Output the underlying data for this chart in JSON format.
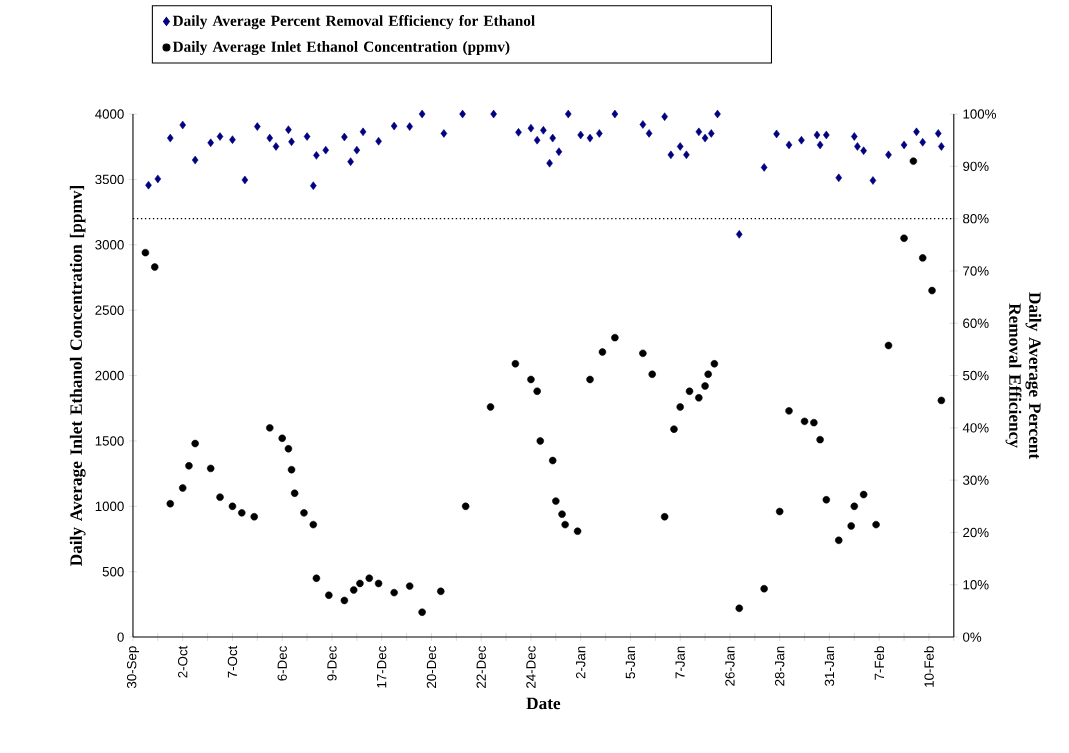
{
  "chart_data": {
    "type": "scatter",
    "xlabel": "Date",
    "ylabel": "Daily Average Inlet Ethanol Concentration [ppmv]",
    "y2label": "Daily Average Percent Removal Efficiency",
    "categories": [
      "30-Sep",
      null,
      null,
      null,
      null,
      null,
      null,
      null,
      null,
      null,
      null,
      null,
      null,
      null,
      null,
      null,
      "2-Oct",
      null,
      null,
      null,
      null,
      null,
      null,
      null,
      null,
      null,
      null,
      null,
      null,
      null,
      null,
      null,
      "7-Oct",
      null,
      null,
      null,
      null,
      null,
      null,
      null,
      null,
      null,
      null,
      null,
      null,
      null,
      null,
      null,
      "6-Dec",
      null,
      null,
      null,
      null,
      null,
      null,
      null,
      null,
      null,
      null,
      null,
      null,
      null,
      null,
      null,
      "9-Dec",
      null,
      null,
      null,
      null,
      null,
      null,
      null,
      null,
      null,
      null,
      null,
      null,
      null,
      null,
      null,
      "17-Dec",
      null,
      null,
      null,
      null,
      null,
      null,
      null,
      null,
      null,
      null,
      null,
      null,
      null,
      null,
      null,
      "20-Dec",
      null,
      null,
      null,
      null,
      null,
      null,
      null,
      null,
      null,
      null,
      null,
      null,
      null,
      null,
      null,
      "22-Dec",
      null,
      null,
      null,
      null,
      null,
      null,
      null,
      null,
      null,
      null,
      null,
      null,
      null,
      null,
      null,
      "24-Dec",
      null,
      null,
      null,
      null,
      null,
      null,
      null,
      null,
      null,
      null,
      null,
      null,
      null,
      null,
      null,
      "2-Jan",
      null,
      null,
      null,
      null,
      null,
      null,
      null,
      null,
      null,
      null,
      null,
      null,
      null,
      null,
      null,
      "5-Jan",
      null,
      null,
      null,
      null,
      null,
      null,
      null,
      null,
      null,
      null,
      null,
      null,
      null,
      null,
      null,
      "7-Jan",
      null,
      null,
      null,
      null,
      null,
      null,
      null,
      null,
      null,
      null,
      null,
      null,
      null,
      null,
      null,
      "26-Jan",
      null,
      null,
      null,
      null,
      null,
      null,
      null,
      null,
      null,
      null,
      null,
      null,
      null,
      null,
      null,
      "28-Jan",
      null,
      null,
      null,
      null,
      null,
      null,
      null,
      null,
      null,
      null,
      null,
      null,
      null,
      null,
      null,
      "31-Jan",
      null,
      null,
      null,
      null,
      null,
      null,
      null,
      null,
      null,
      null,
      null,
      null,
      null,
      null,
      null,
      "7-Feb",
      null,
      null,
      null,
      null,
      null,
      null,
      null,
      null,
      null,
      null,
      null,
      null,
      null,
      null,
      null,
      "10-Feb",
      null,
      null,
      null,
      null,
      null,
      null,
      null
    ],
    "ylim": [
      0,
      4000
    ],
    "yticks": [
      0,
      500,
      1000,
      1500,
      2000,
      2500,
      3000,
      3500,
      4000
    ],
    "y2lim": [
      0,
      100
    ],
    "y2ticks": [
      {
        "value": 0,
        "label": "0%"
      },
      {
        "value": 10,
        "label": "10%"
      },
      {
        "value": 20,
        "label": "20%"
      },
      {
        "value": 30,
        "label": "30%"
      },
      {
        "value": 40,
        "label": "40%"
      },
      {
        "value": 50,
        "label": "50%"
      },
      {
        "value": 60,
        "label": "60%"
      },
      {
        "value": 70,
        "label": "70%"
      },
      {
        "value": 80,
        "label": "80%"
      },
      {
        "value": 90,
        "label": "90%"
      },
      {
        "value": 100,
        "label": "100%"
      }
    ],
    "ref_lines": [
      {
        "axis": "y2",
        "value": 80,
        "color": "#000000",
        "line_style": "dotted"
      }
    ],
    "legend": "top left",
    "series": [
      {
        "name": "Daily Average Percent Removal Efficiency for Ethanol",
        "color": "#000080",
        "marker": "diamond",
        "axis": "y2",
        "values": [
          null,
          null,
          null,
          null,
          null,
          86.4,
          null,
          null,
          87.6,
          null,
          null,
          null,
          95.4,
          null,
          null,
          null,
          97.9,
          null,
          null,
          null,
          91.2,
          null,
          null,
          null,
          null,
          94.5,
          null,
          null,
          95.7,
          null,
          null,
          null,
          95.1,
          null,
          null,
          null,
          87.4,
          null,
          null,
          null,
          97.6,
          null,
          null,
          null,
          95.4,
          null,
          93.8,
          null,
          null,
          null,
          97.0,
          94.7,
          null,
          null,
          null,
          null,
          95.7,
          null,
          86.3,
          92.1,
          null,
          null,
          93.1,
          null,
          null,
          null,
          null,
          null,
          95.6,
          null,
          90.9,
          null,
          93.1,
          null,
          96.6,
          null,
          null,
          null,
          null,
          94.8,
          null,
          null,
          null,
          null,
          97.7,
          null,
          null,
          null,
          null,
          97.6,
          null,
          null,
          null,
          100,
          null,
          null,
          null,
          null,
          null,
          null,
          96.3,
          null,
          null,
          null,
          null,
          null,
          100,
          null,
          null,
          null,
          null,
          null,
          null,
          null,
          null,
          null,
          100,
          null,
          null,
          null,
          null,
          null,
          null,
          null,
          96.5,
          null,
          null,
          null,
          97.3,
          null,
          95.0,
          null,
          96.9,
          null,
          90.6,
          95.4,
          null,
          92.8,
          null,
          null,
          100,
          null,
          null,
          null,
          96.0,
          null,
          null,
          95.4,
          null,
          null,
          96.3,
          null,
          null,
          null,
          null,
          100,
          null,
          null,
          null,
          null,
          null,
          null,
          null,
          null,
          98.0,
          null,
          96.3,
          null,
          null,
          null,
          null,
          99.5,
          null,
          92.2,
          null,
          null,
          93.8,
          null,
          92.2,
          null,
          null,
          null,
          96.6,
          null,
          95.4,
          null,
          96.3,
          null,
          100,
          null,
          null,
          null,
          null,
          null,
          null,
          77.0,
          null,
          null,
          null,
          null,
          null,
          null,
          null,
          89.8,
          null,
          null,
          null,
          96.2,
          null,
          null,
          null,
          94.1,
          null,
          null,
          null,
          95.0,
          null,
          null,
          null,
          null,
          96.0,
          94.1,
          null,
          96.0,
          null,
          null,
          null,
          87.8,
          null,
          null,
          null,
          null,
          95.7,
          93.8,
          null,
          93.0,
          null,
          null,
          87.3,
          null,
          null,
          null,
          null,
          92.2,
          null,
          null,
          null,
          null,
          94.1,
          null,
          null,
          null,
          96.6,
          null,
          94.6,
          null,
          null,
          null,
          null,
          96.3,
          93.8,
          null,
          null,
          null
        ]
      },
      {
        "name": "Daily Average Inlet Ethanol Concentration (ppmv)",
        "color": "#000000",
        "marker": "circle",
        "axis": "y",
        "values": [
          null,
          null,
          null,
          null,
          2940,
          null,
          null,
          2830,
          null,
          null,
          null,
          null,
          1020,
          null,
          null,
          null,
          1140,
          null,
          1310,
          null,
          1480,
          null,
          null,
          null,
          null,
          1290,
          null,
          null,
          1070,
          null,
          null,
          null,
          1000,
          null,
          null,
          950,
          null,
          null,
          null,
          920,
          null,
          null,
          null,
          null,
          1600,
          null,
          null,
          null,
          1520,
          null,
          1440,
          1280,
          1100,
          null,
          null,
          950,
          null,
          null,
          860,
          450,
          null,
          null,
          null,
          320,
          null,
          null,
          null,
          null,
          280,
          null,
          null,
          360,
          null,
          410,
          null,
          null,
          450,
          null,
          null,
          410,
          null,
          null,
          null,
          null,
          340,
          null,
          null,
          null,
          null,
          390,
          null,
          null,
          null,
          190,
          null,
          null,
          null,
          null,
          null,
          350,
          null,
          null,
          null,
          null,
          null,
          null,
          null,
          1000,
          null,
          null,
          null,
          null,
          null,
          null,
          null,
          1760,
          null,
          null,
          null,
          null,
          null,
          null,
          null,
          2090,
          null,
          null,
          null,
          null,
          1970,
          null,
          1880,
          1500,
          null,
          null,
          null,
          1350,
          1040,
          null,
          940,
          860,
          null,
          null,
          null,
          810,
          null,
          null,
          null,
          1970,
          null,
          null,
          null,
          2180,
          null,
          null,
          null,
          2290,
          null,
          null,
          null,
          null,
          null,
          null,
          null,
          null,
          2170,
          null,
          null,
          2010,
          null,
          null,
          null,
          920,
          null,
          null,
          1590,
          null,
          1760,
          null,
          null,
          1880,
          null,
          null,
          1830,
          null,
          1920,
          2010,
          null,
          2090,
          null,
          null,
          null,
          null,
          null,
          null,
          null,
          220,
          null,
          null,
          null,
          null,
          null,
          null,
          null,
          370,
          null,
          null,
          null,
          null,
          960,
          null,
          null,
          1730,
          null,
          null,
          null,
          null,
          1650,
          null,
          null,
          1640,
          null,
          1510,
          null,
          1050,
          null,
          null,
          null,
          740,
          null,
          null,
          null,
          850,
          1000,
          null,
          null,
          1090,
          null,
          null,
          null,
          860,
          null,
          null,
          null,
          2230,
          null,
          null,
          null,
          null,
          3050,
          null,
          null,
          3640,
          null,
          null,
          2900,
          null,
          null,
          2650,
          null,
          null,
          1810,
          null,
          null,
          null
        ]
      }
    ]
  }
}
